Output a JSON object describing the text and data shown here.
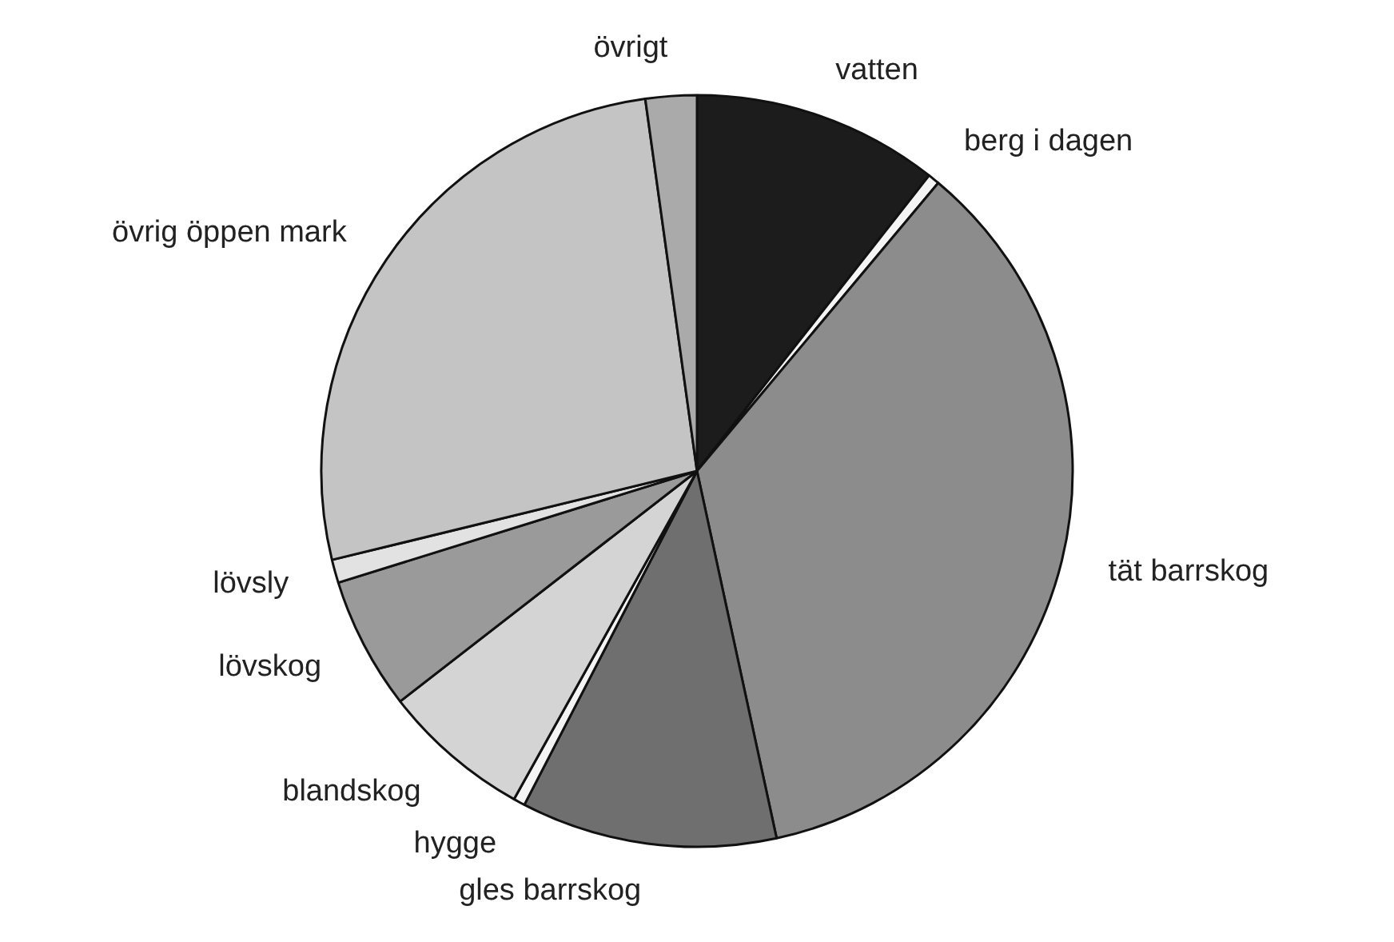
{
  "chart_data": {
    "type": "pie",
    "categories": [
      "vatten",
      "berg i dagen",
      "tät barrskog",
      "gles barrskog",
      "hygge",
      "blandskog",
      "lövskog",
      "lövsly",
      "övrig öppen mark",
      "övrigt"
    ],
    "values": [
      10.6,
      0.5,
      35.5,
      11,
      0.5,
      6.4,
      5.7,
      1,
      26.6,
      2.2
    ],
    "colors": [
      "#1c1c1c",
      "#f4f4f4",
      "#8c8c8c",
      "#6f6f6f",
      "#f4f4f4",
      "#d4d4d4",
      "#9a9a9a",
      "#e2e2e2",
      "#c4c4c4",
      "#aaaaaa"
    ],
    "legend": false
  }
}
